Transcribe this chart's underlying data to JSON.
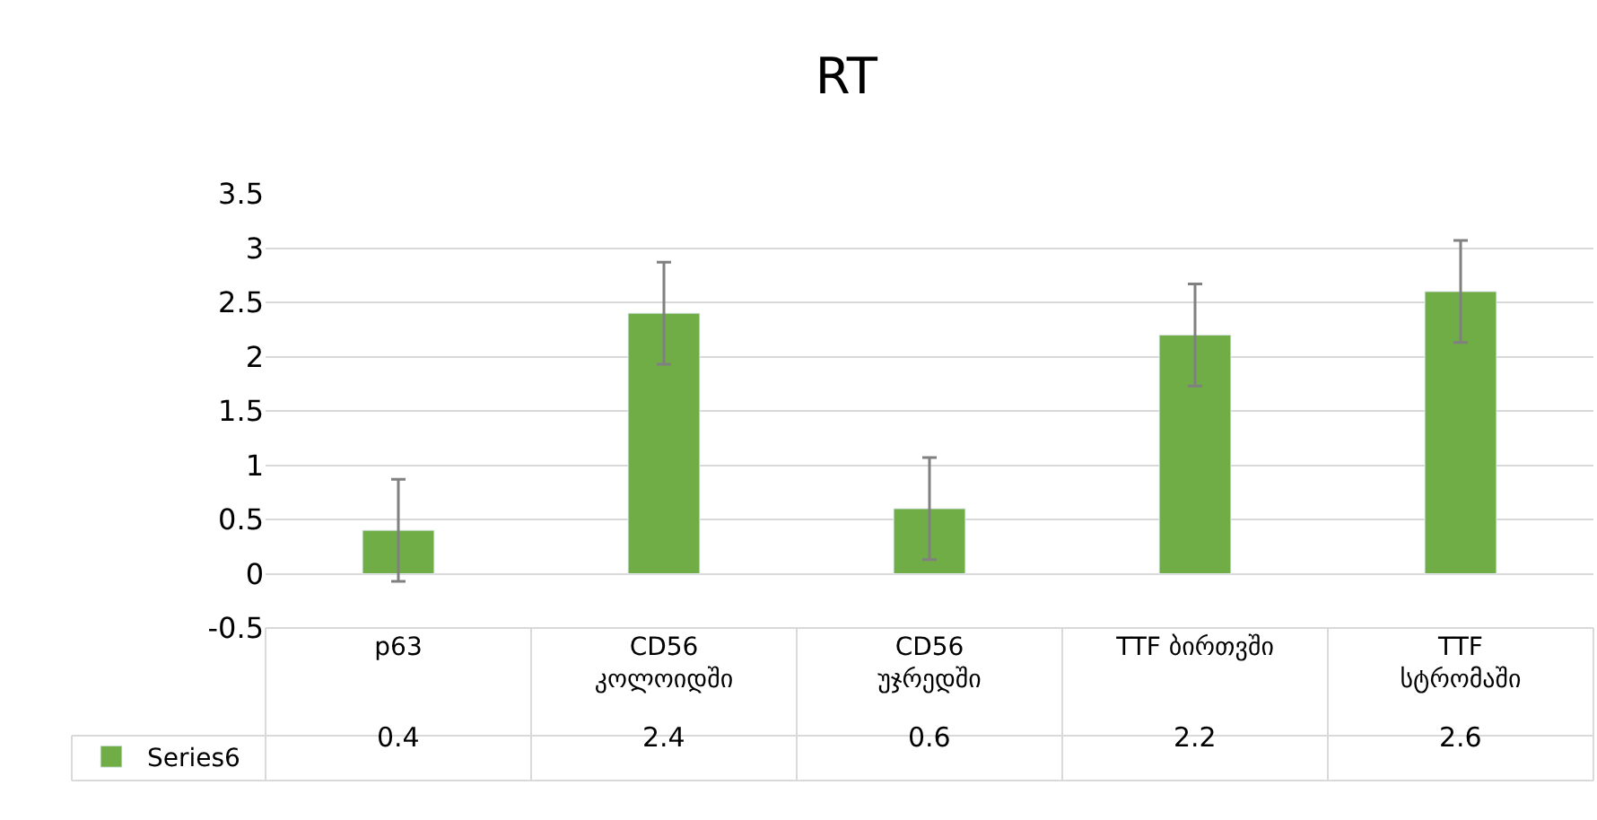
{
  "chart_data": {
    "type": "bar",
    "title": "RT",
    "categories": [
      "p63",
      "CD56 კოლოიდში",
      "CD56 უჯრედში",
      "TTF ბირთვში",
      "TTF სტრომაში"
    ],
    "series": [
      {
        "name": "Series6",
        "color": "#70ad47",
        "values": [
          0.4,
          2.4,
          0.6,
          2.2,
          2.6
        ],
        "errors": [
          0.47,
          0.47,
          0.47,
          0.47,
          0.47
        ]
      }
    ],
    "ylim": [
      -0.5,
      3.5
    ],
    "yticks": [
      -0.5,
      0,
      0.5,
      1,
      1.5,
      2,
      2.5,
      3,
      3.5
    ],
    "grid": "y",
    "legend": "bottom",
    "data_labels": true
  }
}
